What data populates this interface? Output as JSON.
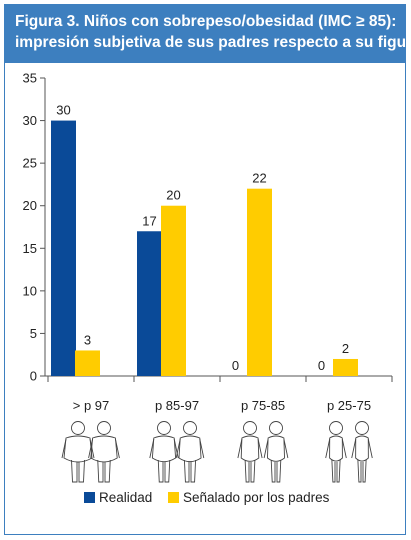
{
  "title": {
    "line1": "Figura 3. Niños con sobrepeso/obesidad (IMC ≥ 85):",
    "line2": "impresión subjetiva de sus padres respecto a su figura"
  },
  "colors": {
    "accent": "#3d7fbf",
    "realidad": "#0a4a98",
    "padres": "#ffcc00"
  },
  "chart_data": {
    "type": "bar",
    "categories": [
      "> p 97",
      "p 85-97",
      "p 75-85",
      "p 25-75"
    ],
    "series": [
      {
        "name": "Realidad",
        "values": [
          30,
          17,
          0,
          0
        ]
      },
      {
        "name": "Señalado por los padres",
        "values": [
          3,
          20,
          22,
          2
        ]
      }
    ],
    "yticks": [
      0,
      5,
      10,
      15,
      20,
      25,
      30,
      35
    ],
    "ylim": [
      0,
      35
    ],
    "grid": false,
    "legend_position": "bottom"
  },
  "figure_icons": [
    "obese-children-figure-icon",
    "overweight-children-figure-icon",
    "normal-children-figure-icon",
    "thin-children-figure-icon"
  ]
}
